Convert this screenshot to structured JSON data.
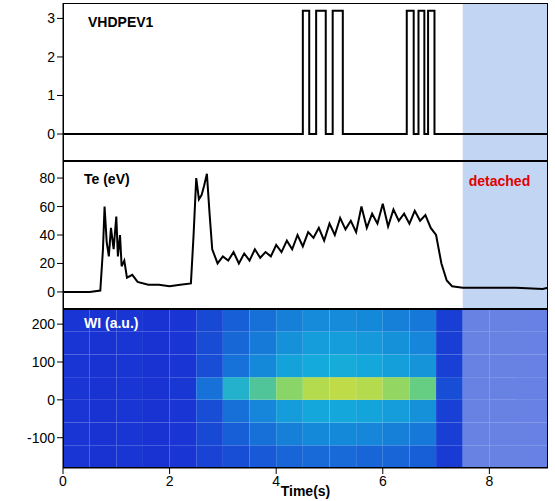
{
  "chart_data": [
    {
      "type": "line",
      "title": "VHDPEV1",
      "tick_labels": "y",
      "xlim": [
        0,
        9.1
      ],
      "xticks": [
        0,
        2,
        4,
        6,
        8
      ],
      "ylim": [
        -0.7,
        3.4
      ],
      "yticks": [
        0,
        1,
        2,
        3
      ],
      "series": [
        {
          "name": "VHDPEV1",
          "color": "#000000",
          "line_style": "step",
          "x": [
            0,
            4.5,
            4.62,
            4.75,
            4.93,
            5.06,
            5.25,
            6.45,
            6.58,
            6.67,
            6.78,
            6.85,
            6.97,
            9.1
          ],
          "values": [
            0,
            3.2,
            0,
            3.2,
            0,
            3.2,
            0,
            3.2,
            0,
            3.2,
            0,
            3.2,
            0,
            0
          ]
        }
      ]
    },
    {
      "type": "line",
      "title": "Te (eV)",
      "tick_labels": "y",
      "xlim": [
        0,
        9.1
      ],
      "xticks": [
        0,
        2,
        4,
        6,
        8
      ],
      "ylim": [
        -12,
        92
      ],
      "yticks": [
        0,
        20,
        40,
        60,
        80
      ],
      "annotations": [
        {
          "text": "detached",
          "x_range": [
            7.5,
            9.1
          ]
        }
      ],
      "series": [
        {
          "name": "Te (eV)",
          "color": "#000000",
          "line_style": "solid",
          "x": [
            0,
            0.5,
            0.7,
            0.75,
            0.78,
            0.82,
            0.86,
            0.9,
            0.95,
            1.0,
            1.03,
            1.07,
            1.1,
            1.15,
            1.2,
            1.3,
            1.4,
            1.6,
            1.8,
            2.0,
            2.2,
            2.4,
            2.45,
            2.5,
            2.55,
            2.6,
            2.65,
            2.7,
            2.75,
            2.8,
            2.9,
            3.0,
            3.1,
            3.2,
            3.3,
            3.4,
            3.5,
            3.6,
            3.7,
            3.8,
            3.9,
            4.0,
            4.1,
            4.2,
            4.3,
            4.4,
            4.5,
            4.6,
            4.7,
            4.8,
            4.9,
            5.0,
            5.1,
            5.2,
            5.3,
            5.4,
            5.5,
            5.6,
            5.7,
            5.8,
            5.9,
            6.0,
            6.1,
            6.2,
            6.3,
            6.4,
            6.5,
            6.6,
            6.7,
            6.8,
            6.9,
            7.0,
            7.1,
            7.2,
            7.3,
            7.5,
            8.0,
            8.5,
            9.0,
            9.1
          ],
          "values": [
            0,
            0,
            1,
            30,
            60,
            35,
            25,
            45,
            30,
            53,
            25,
            40,
            18,
            22,
            10,
            12,
            7,
            5,
            5,
            4,
            5,
            6,
            40,
            80,
            65,
            68,
            75,
            83,
            55,
            30,
            20,
            25,
            22,
            28,
            20,
            27,
            22,
            30,
            24,
            28,
            25,
            33,
            28,
            36,
            30,
            40,
            32,
            42,
            38,
            45,
            36,
            48,
            40,
            52,
            44,
            50,
            42,
            60,
            45,
            55,
            48,
            62,
            46,
            58,
            50,
            55,
            48,
            57,
            50,
            54,
            45,
            40,
            20,
            8,
            4,
            3,
            3,
            3,
            2,
            3
          ]
        }
      ]
    },
    {
      "type": "heatmap",
      "title": "WI (a.u.)",
      "x_label": "Time(s)",
      "xlim": [
        0,
        9.1
      ],
      "xticks": [
        0,
        2,
        4,
        6,
        8
      ],
      "ylim": [
        -180,
        240
      ],
      "yticks": [
        -100,
        0,
        100,
        200
      ],
      "x_bins": [
        0,
        0.5,
        1,
        1.5,
        2,
        2.5,
        3,
        3.5,
        4,
        4.5,
        5,
        5.5,
        6,
        6.5,
        7,
        7.5,
        8,
        8.5,
        9.1
      ],
      "y_bins": [
        -180,
        -120,
        -60,
        0,
        60,
        120,
        180,
        240
      ],
      "intensity_range": [
        0,
        1
      ],
      "cells": [
        [
          0.03,
          0.02,
          0.03,
          0.02,
          0.03,
          0.08,
          0.12,
          0.16,
          0.2,
          0.22,
          0.22,
          0.2,
          0.2,
          0.18,
          0.05,
          0.03,
          0.03,
          0.02
        ],
        [
          0.03,
          0.02,
          0.03,
          0.02,
          0.03,
          0.1,
          0.18,
          0.24,
          0.3,
          0.33,
          0.33,
          0.32,
          0.3,
          0.27,
          0.06,
          0.03,
          0.03,
          0.02
        ],
        [
          0.03,
          0.02,
          0.03,
          0.02,
          0.03,
          0.12,
          0.24,
          0.32,
          0.4,
          0.44,
          0.44,
          0.43,
          0.4,
          0.36,
          0.07,
          0.03,
          0.03,
          0.02
        ],
        [
          0.03,
          0.02,
          0.03,
          0.02,
          0.04,
          0.25,
          0.5,
          0.65,
          0.8,
          0.88,
          0.9,
          0.88,
          0.82,
          0.72,
          0.12,
          0.03,
          0.03,
          0.02
        ],
        [
          0.03,
          0.02,
          0.03,
          0.02,
          0.03,
          0.12,
          0.25,
          0.33,
          0.42,
          0.45,
          0.46,
          0.44,
          0.41,
          0.37,
          0.07,
          0.03,
          0.03,
          0.02
        ],
        [
          0.03,
          0.02,
          0.03,
          0.02,
          0.03,
          0.11,
          0.21,
          0.28,
          0.36,
          0.4,
          0.4,
          0.39,
          0.36,
          0.32,
          0.06,
          0.03,
          0.03,
          0.02
        ],
        [
          0.03,
          0.02,
          0.03,
          0.02,
          0.03,
          0.1,
          0.18,
          0.24,
          0.3,
          0.34,
          0.34,
          0.33,
          0.3,
          0.27,
          0.06,
          0.03,
          0.03,
          0.02
        ]
      ]
    }
  ]
}
